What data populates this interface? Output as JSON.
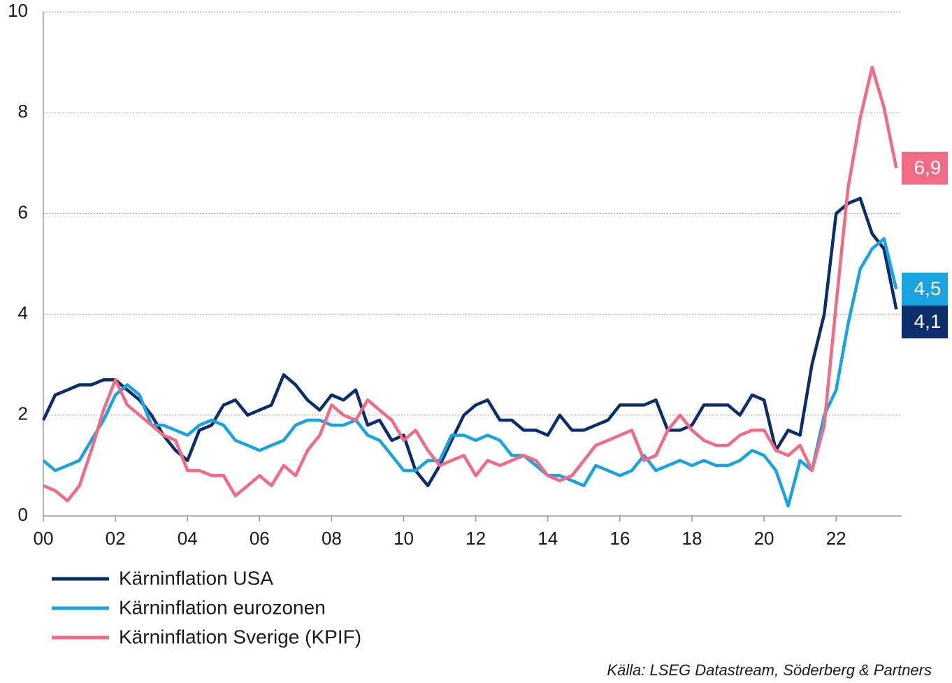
{
  "chart_data": {
    "type": "line",
    "x": [
      2000,
      2000.33,
      2000.67,
      2001,
      2001.33,
      2001.67,
      2002,
      2002.33,
      2002.67,
      2003,
      2003.33,
      2003.67,
      2004,
      2004.33,
      2004.67,
      2005,
      2005.33,
      2005.67,
      2006,
      2006.33,
      2006.67,
      2007,
      2007.33,
      2007.67,
      2008,
      2008.33,
      2008.67,
      2009,
      2009.33,
      2009.67,
      2010,
      2010.33,
      2010.67,
      2011,
      2011.33,
      2011.67,
      2012,
      2012.33,
      2012.67,
      2013,
      2013.33,
      2013.67,
      2014,
      2014.33,
      2014.67,
      2015,
      2015.33,
      2015.67,
      2016,
      2016.33,
      2016.67,
      2017,
      2017.33,
      2017.67,
      2018,
      2018.33,
      2018.67,
      2019,
      2019.33,
      2019.67,
      2020,
      2020.33,
      2020.67,
      2021,
      2021.33,
      2021.67,
      2022,
      2022.33,
      2022.67,
      2023,
      2023.33,
      2023.67
    ],
    "series": [
      {
        "name": "Kärninflation USA",
        "color": "#0b2d6b",
        "values": [
          1.9,
          2.4,
          2.5,
          2.6,
          2.6,
          2.7,
          2.7,
          2.5,
          2.3,
          2.0,
          1.6,
          1.3,
          1.1,
          1.7,
          1.8,
          2.2,
          2.3,
          2.0,
          2.1,
          2.2,
          2.8,
          2.6,
          2.3,
          2.1,
          2.4,
          2.3,
          2.5,
          1.8,
          1.9,
          1.5,
          1.6,
          0.9,
          0.6,
          1.0,
          1.5,
          2.0,
          2.2,
          2.3,
          1.9,
          1.9,
          1.7,
          1.7,
          1.6,
          2.0,
          1.7,
          1.7,
          1.8,
          1.9,
          2.2,
          2.2,
          2.2,
          2.3,
          1.7,
          1.7,
          1.8,
          2.2,
          2.2,
          2.2,
          2.0,
          2.4,
          2.3,
          1.3,
          1.7,
          1.6,
          3.0,
          4.0,
          6.0,
          6.2,
          6.3,
          5.6,
          5.3,
          4.1
        ],
        "value_labels": [
          null,
          null,
          null,
          null,
          null,
          null,
          null,
          null,
          null,
          null,
          null,
          null,
          null,
          null,
          null,
          null,
          null,
          null,
          null,
          null,
          null,
          null,
          null,
          null,
          null,
          null,
          null,
          null,
          null,
          null,
          null,
          null,
          null,
          null,
          null,
          null,
          null,
          null,
          null,
          null,
          null,
          null,
          null,
          null,
          null,
          null,
          null,
          null,
          null,
          null,
          null,
          null,
          null,
          null,
          null,
          null,
          null,
          null,
          null,
          null,
          null,
          null,
          null,
          null,
          null,
          null,
          null,
          null,
          null,
          null,
          null,
          "4,1"
        ]
      },
      {
        "name": "Kärninflation eurozonen",
        "color": "#1ba3e0",
        "values": [
          1.1,
          0.9,
          1.0,
          1.1,
          1.5,
          1.9,
          2.4,
          2.6,
          2.4,
          1.8,
          1.8,
          1.7,
          1.6,
          1.8,
          1.9,
          1.8,
          1.5,
          1.4,
          1.3,
          1.4,
          1.5,
          1.8,
          1.9,
          1.9,
          1.8,
          1.8,
          1.9,
          1.6,
          1.5,
          1.2,
          0.9,
          0.9,
          1.1,
          1.1,
          1.6,
          1.6,
          1.5,
          1.6,
          1.5,
          1.2,
          1.2,
          1.0,
          0.8,
          0.8,
          0.7,
          0.6,
          1.0,
          0.9,
          0.8,
          0.9,
          1.2,
          0.9,
          1.0,
          1.1,
          1.0,
          1.1,
          1.0,
          1.0,
          1.1,
          1.3,
          1.2,
          0.9,
          0.2,
          1.1,
          0.9,
          2.0,
          2.5,
          3.8,
          4.9,
          5.3,
          5.5,
          4.5
        ],
        "value_labels": [
          null,
          null,
          null,
          null,
          null,
          null,
          null,
          null,
          null,
          null,
          null,
          null,
          null,
          null,
          null,
          null,
          null,
          null,
          null,
          null,
          null,
          null,
          null,
          null,
          null,
          null,
          null,
          null,
          null,
          null,
          null,
          null,
          null,
          null,
          null,
          null,
          null,
          null,
          null,
          null,
          null,
          null,
          null,
          null,
          null,
          null,
          null,
          null,
          null,
          null,
          null,
          null,
          null,
          null,
          null,
          null,
          null,
          null,
          null,
          null,
          null,
          null,
          null,
          null,
          null,
          null,
          null,
          null,
          null,
          null,
          null,
          "4,5"
        ]
      },
      {
        "name": "Kärninflation Sverige (KPIF)",
        "color": "#f26b85",
        "values": [
          0.6,
          0.5,
          0.3,
          0.6,
          1.3,
          2.1,
          2.7,
          2.2,
          2.0,
          1.8,
          1.6,
          1.5,
          0.9,
          0.9,
          0.8,
          0.8,
          0.4,
          0.6,
          0.8,
          0.6,
          1.0,
          0.8,
          1.3,
          1.6,
          2.2,
          2.0,
          1.9,
          2.3,
          2.1,
          1.9,
          1.5,
          1.7,
          1.3,
          1.0,
          1.1,
          1.2,
          0.8,
          1.1,
          1.0,
          1.1,
          1.2,
          1.1,
          0.8,
          0.7,
          0.8,
          1.1,
          1.4,
          1.5,
          1.6,
          1.7,
          1.1,
          1.2,
          1.7,
          2.0,
          1.7,
          1.5,
          1.4,
          1.4,
          1.6,
          1.7,
          1.7,
          1.3,
          1.2,
          1.4,
          0.9,
          1.8,
          4.2,
          6.5,
          7.9,
          8.9,
          8.1,
          6.9
        ],
        "value_labels": [
          null,
          null,
          null,
          null,
          null,
          null,
          null,
          null,
          null,
          null,
          null,
          null,
          null,
          null,
          null,
          null,
          null,
          null,
          null,
          null,
          null,
          null,
          null,
          null,
          null,
          null,
          null,
          null,
          null,
          null,
          null,
          null,
          null,
          null,
          null,
          null,
          null,
          null,
          null,
          null,
          null,
          null,
          null,
          null,
          null,
          null,
          null,
          null,
          null,
          null,
          null,
          null,
          null,
          null,
          null,
          null,
          null,
          null,
          null,
          null,
          null,
          null,
          null,
          null,
          null,
          null,
          null,
          null,
          null,
          null,
          null,
          "6,9"
        ]
      }
    ],
    "xlim": [
      2000,
      2023.82
    ],
    "xticks": [
      {
        "value": 2000,
        "label": "00"
      },
      {
        "value": 2002,
        "label": "02"
      },
      {
        "value": 2004,
        "label": "04"
      },
      {
        "value": 2006,
        "label": "06"
      },
      {
        "value": 2008,
        "label": "08"
      },
      {
        "value": 2010,
        "label": "10"
      },
      {
        "value": 2012,
        "label": "12"
      },
      {
        "value": 2014,
        "label": "14"
      },
      {
        "value": 2016,
        "label": "16"
      },
      {
        "value": 2018,
        "label": "18"
      },
      {
        "value": 2020,
        "label": "20"
      },
      {
        "value": 2022,
        "label": "22"
      }
    ],
    "ylim": [
      0,
      10
    ],
    "yticks": [
      0,
      2,
      4,
      6,
      8,
      10
    ],
    "grid": true,
    "source": "Källa: LSEG Datastream, Söderberg & Partners"
  }
}
